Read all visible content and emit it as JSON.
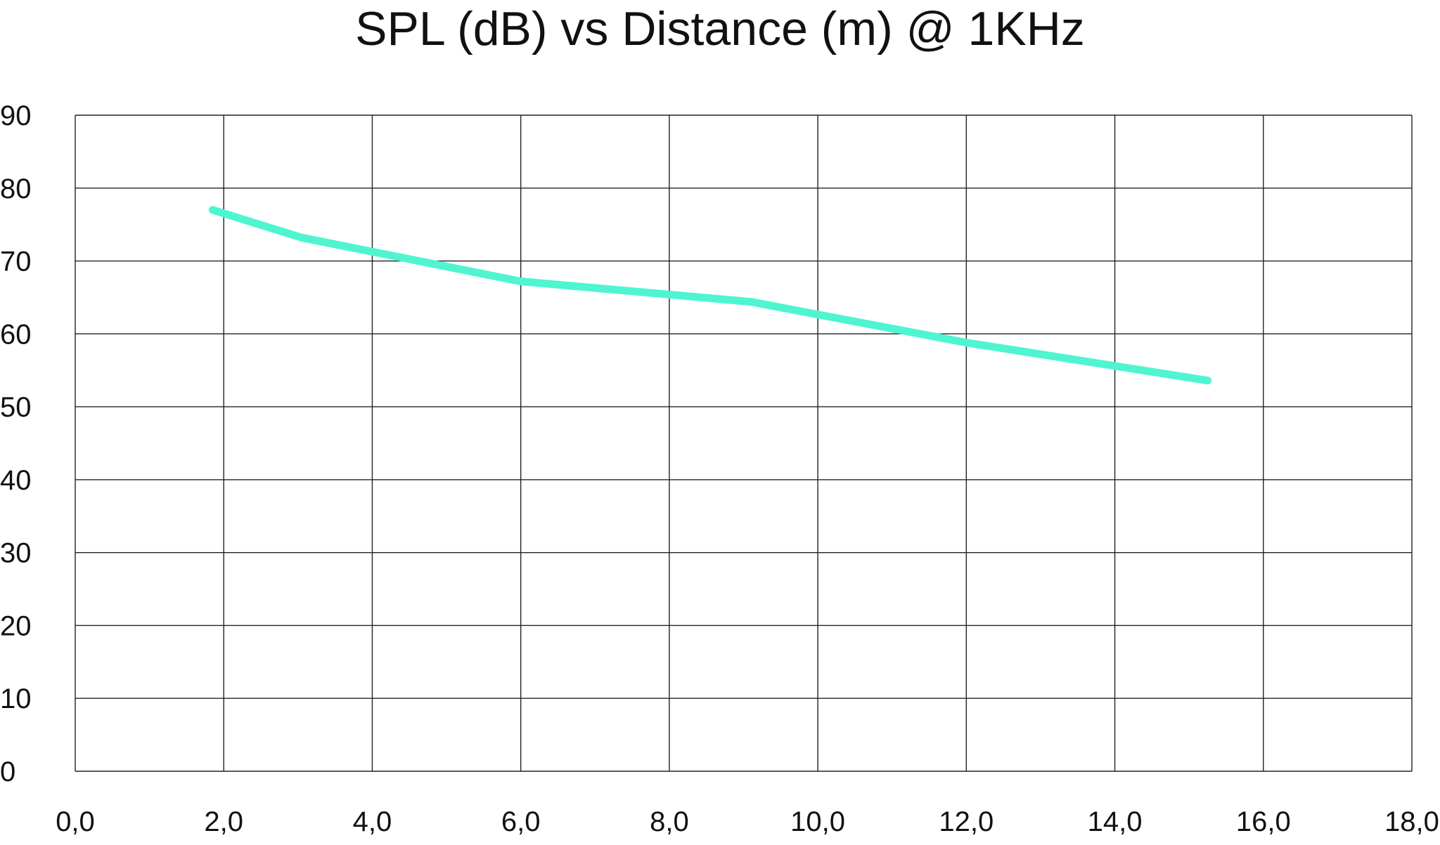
{
  "chart_data": {
    "type": "line",
    "title": "SPL (dB) vs Distance (m) @ 1KHz",
    "xlabel": "",
    "ylabel": "",
    "xlim": [
      0,
      18
    ],
    "ylim": [
      0,
      90
    ],
    "x_ticks": [
      0,
      2,
      4,
      6,
      8,
      10,
      12,
      14,
      16,
      18
    ],
    "x_tick_labels": [
      "0,0",
      "2,0",
      "4,0",
      "6,0",
      "8,0",
      "10,0",
      "12,0",
      "14,0",
      "16,0",
      "18,0"
    ],
    "y_ticks": [
      0,
      10,
      20,
      30,
      40,
      50,
      60,
      70,
      80,
      90
    ],
    "y_tick_labels": [
      "0",
      "10",
      "20",
      "30",
      "40",
      "50",
      "60",
      "70",
      "80",
      "90"
    ],
    "grid": true,
    "series": [
      {
        "name": "SPL",
        "color": "#4ef5d0",
        "x": [
          1.85,
          3.05,
          6.0,
          9.1,
          12.0,
          14.0,
          15.25
        ],
        "y": [
          77.0,
          73.2,
          67.2,
          64.4,
          58.8,
          55.6,
          53.6
        ]
      }
    ]
  }
}
